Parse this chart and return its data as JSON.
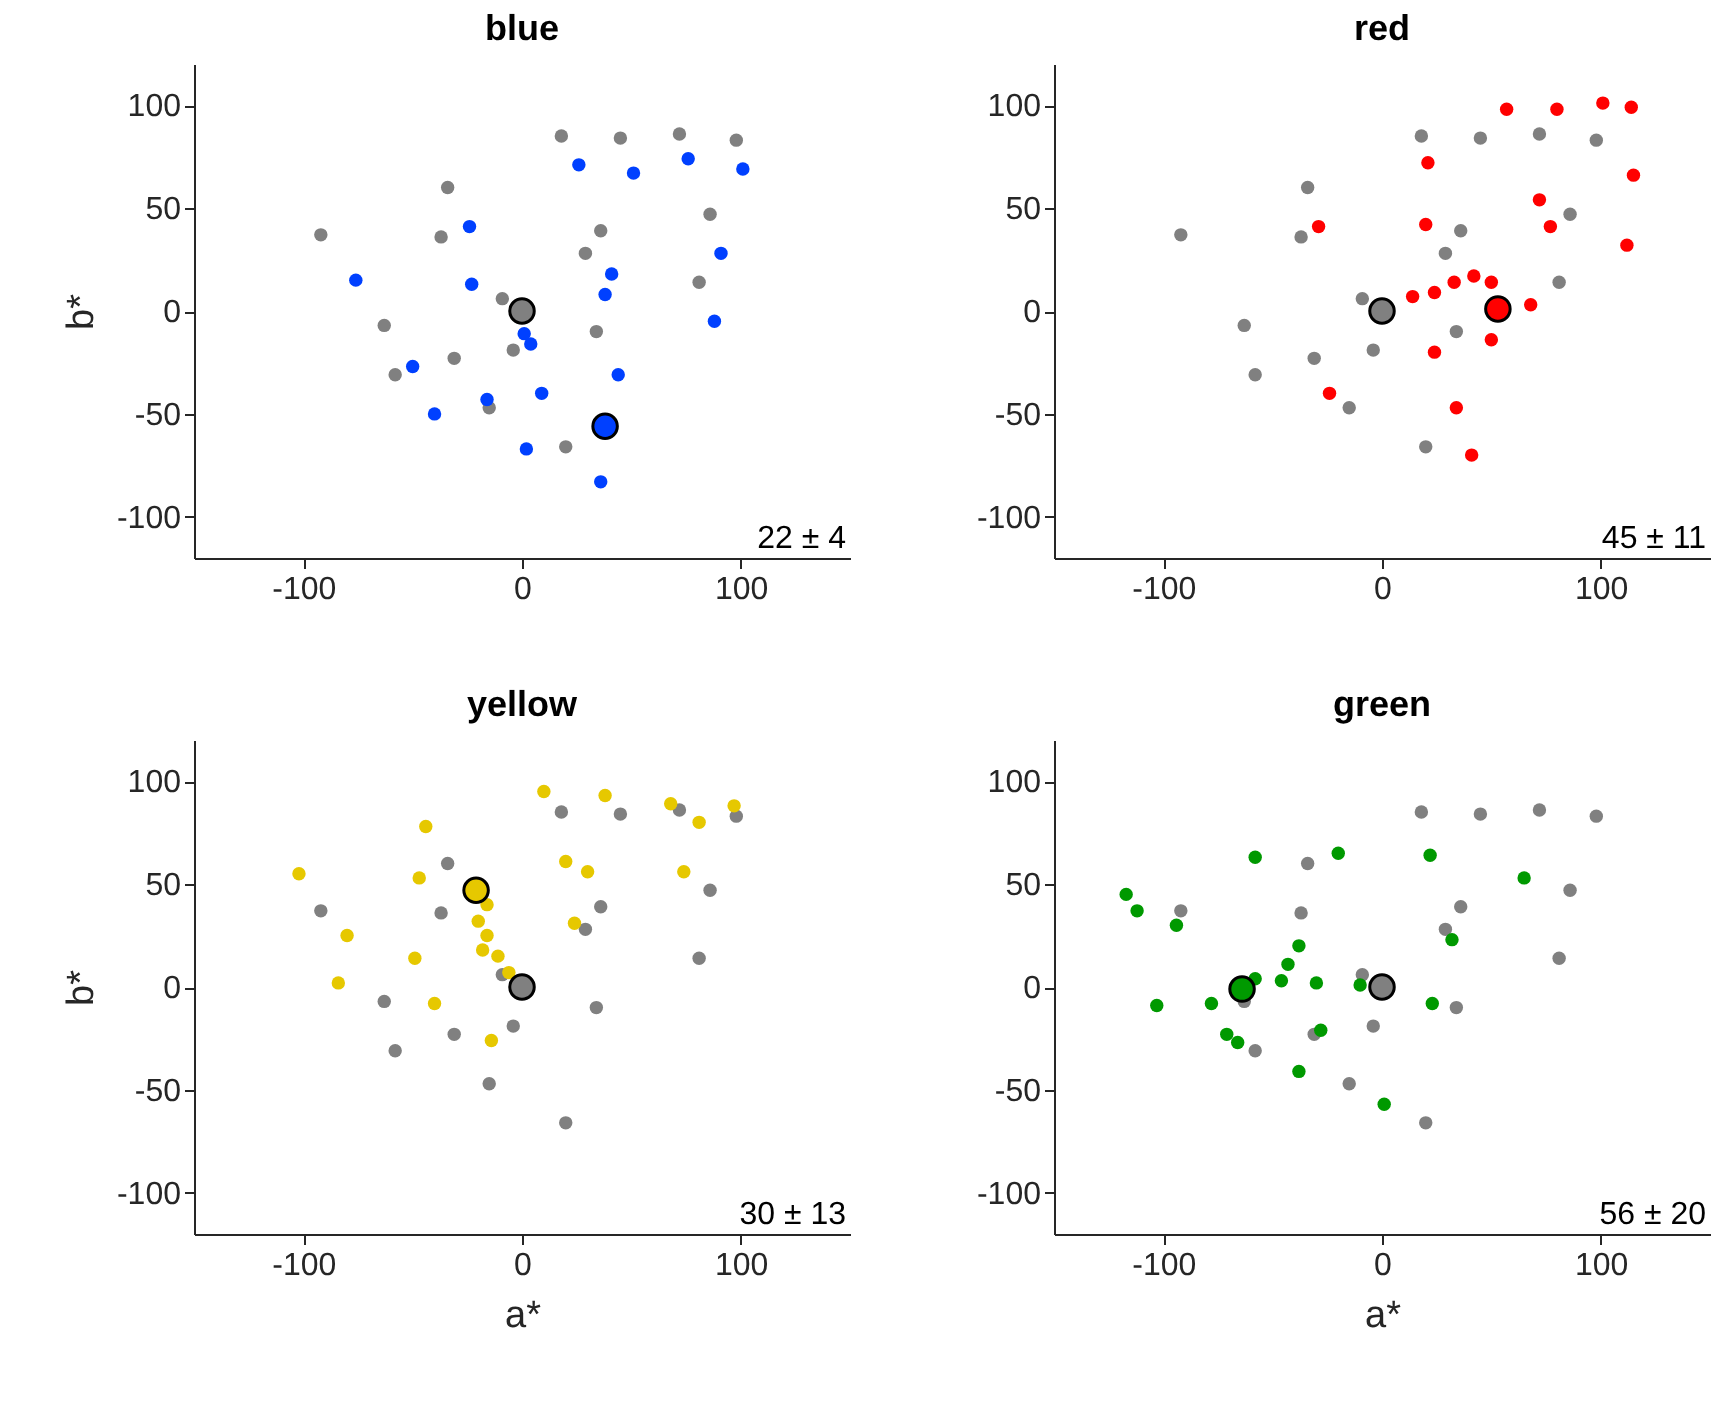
{
  "chart_data": [
    {
      "type": "scatter",
      "title": "blue",
      "ylabel": "b*",
      "xlim": [
        -150,
        150
      ],
      "ylim": [
        -120,
        120
      ],
      "xticks": [
        -100,
        0,
        100
      ],
      "yticks": [
        -100,
        -50,
        0,
        50,
        100
      ],
      "grid": false,
      "marker": "circle",
      "annotations": [
        "22 ± 4"
      ],
      "series": [
        {
          "color": "#808080",
          "x": [
            18,
            45,
            72,
            98,
            -34,
            -92,
            -37,
            36,
            29,
            86,
            81,
            -9,
            -63,
            34,
            -31,
            -58,
            -4,
            -15,
            20
          ],
          "values": [
            85,
            84,
            86,
            83,
            60,
            37,
            36,
            39,
            28,
            47,
            14,
            6,
            -7,
            -10,
            -23,
            -31,
            -19,
            -47,
            -66
          ]
        },
        {
          "color": "#0040ff",
          "x": [
            26,
            51,
            76,
            101,
            -24,
            -76,
            -23,
            41,
            38,
            91,
            88,
            4,
            1,
            44,
            -50,
            -16,
            9,
            -40,
            2,
            36
          ],
          "values": [
            71,
            67,
            74,
            69,
            41,
            15,
            13,
            18,
            8,
            28,
            -5,
            -16,
            -11,
            -31,
            -27,
            -43,
            -40,
            -50,
            -67,
            -83
          ]
        },
        {
          "color": "#808080",
          "x": [
            0
          ],
          "values": [
            0
          ]
        },
        {
          "color": "#0040ff",
          "x": [
            38
          ],
          "values": [
            -56
          ]
        }
      ]
    },
    {
      "type": "scatter",
      "title": "red",
      "xlim": [
        -150,
        150
      ],
      "ylim": [
        -120,
        120
      ],
      "xticks": [
        -100,
        0,
        100
      ],
      "yticks": [
        -100,
        -50,
        0,
        50,
        100
      ],
      "grid": false,
      "marker": "circle",
      "annotations": [
        "45 ± 11"
      ],
      "series": [
        {
          "color": "#808080",
          "x": [
            18,
            45,
            72,
            98,
            -34,
            -92,
            -37,
            36,
            29,
            86,
            81,
            -9,
            -63,
            34,
            -31,
            -58,
            -4,
            -15,
            20
          ],
          "values": [
            85,
            84,
            86,
            83,
            60,
            37,
            36,
            39,
            28,
            47,
            14,
            6,
            -7,
            -10,
            -23,
            -31,
            -19,
            -47,
            -66
          ]
        },
        {
          "color": "#ff0000",
          "x": [
            57,
            80,
            101,
            114,
            21,
            115,
            72,
            77,
            112,
            -29,
            20,
            14,
            24,
            33,
            42,
            50,
            68,
            24,
            50,
            -24,
            34,
            41
          ],
          "values": [
            98,
            98,
            101,
            99,
            72,
            66,
            54,
            41,
            32,
            41,
            42,
            7,
            9,
            14,
            17,
            14,
            3,
            -20,
            -14,
            -40,
            -47,
            -70
          ]
        },
        {
          "color": "#808080",
          "x": [
            0
          ],
          "values": [
            0
          ]
        },
        {
          "color": "#ff0000",
          "x": [
            53
          ],
          "values": [
            1
          ]
        }
      ]
    },
    {
      "type": "scatter",
      "title": "yellow",
      "xlabel": "a*",
      "ylabel": "b*",
      "xlim": [
        -150,
        150
      ],
      "ylim": [
        -120,
        120
      ],
      "xticks": [
        -100,
        0,
        100
      ],
      "yticks": [
        -100,
        -50,
        0,
        50,
        100
      ],
      "grid": false,
      "marker": "circle",
      "annotations": [
        "30 ± 13"
      ],
      "series": [
        {
          "color": "#808080",
          "x": [
            18,
            45,
            72,
            98,
            -34,
            -92,
            -37,
            36,
            29,
            86,
            81,
            -9,
            -63,
            34,
            -31,
            -58,
            -4,
            -15,
            20
          ],
          "values": [
            85,
            84,
            86,
            83,
            60,
            37,
            36,
            39,
            28,
            47,
            14,
            6,
            -7,
            -10,
            -23,
            -31,
            -19,
            -47,
            -66
          ]
        },
        {
          "color": "#e6c800",
          "x": [
            10,
            38,
            68,
            81,
            97,
            -44,
            -102,
            -47,
            20,
            30,
            74,
            -80,
            -49,
            -84,
            24,
            -40,
            -14,
            -16,
            -20,
            -16,
            -18,
            -11,
            -6
          ],
          "values": [
            95,
            93,
            89,
            80,
            88,
            78,
            55,
            53,
            61,
            56,
            56,
            25,
            14,
            2,
            31,
            -8,
            -26,
            40,
            32,
            25,
            18,
            15,
            7
          ]
        },
        {
          "color": "#808080",
          "x": [
            0
          ],
          "values": [
            0
          ]
        },
        {
          "color": "#e6c800",
          "x": [
            -21
          ],
          "values": [
            47
          ]
        }
      ]
    },
    {
      "type": "scatter",
      "title": "green",
      "xlabel": "a*",
      "xlim": [
        -150,
        150
      ],
      "ylim": [
        -120,
        120
      ],
      "xticks": [
        -100,
        0,
        100
      ],
      "yticks": [
        -100,
        -50,
        0,
        50,
        100
      ],
      "grid": false,
      "marker": "circle",
      "annotations": [
        "56 ± 20"
      ],
      "series": [
        {
          "color": "#808080",
          "x": [
            18,
            45,
            72,
            98,
            -34,
            -92,
            -37,
            36,
            29,
            86,
            81,
            -9,
            -63,
            34,
            -31,
            -58,
            -4,
            -15,
            20
          ],
          "values": [
            85,
            84,
            86,
            83,
            60,
            37,
            36,
            39,
            28,
            47,
            14,
            6,
            -7,
            -10,
            -23,
            -31,
            -19,
            -47,
            -66
          ]
        },
        {
          "color": "#009900",
          "x": [
            -58,
            -20,
            22,
            65,
            -117,
            -112,
            -94,
            32,
            -38,
            -43,
            -103,
            -78,
            -58,
            -46,
            -30,
            -10,
            23,
            -28,
            -71,
            -66,
            -38,
            1
          ],
          "values": [
            63,
            65,
            64,
            53,
            45,
            37,
            30,
            23,
            20,
            11,
            -9,
            -8,
            4,
            3,
            2,
            1,
            -8,
            -21,
            -23,
            -27,
            -41,
            -57
          ]
        },
        {
          "color": "#808080",
          "x": [
            0
          ],
          "values": [
            0
          ]
        },
        {
          "color": "#009900",
          "x": [
            -64
          ],
          "values": [
            -1
          ]
        }
      ]
    }
  ]
}
